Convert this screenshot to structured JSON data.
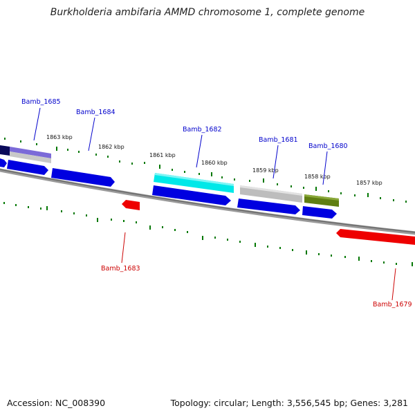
{
  "title": "Burkholderia ambifaria AMMD chromosome 1, complete genome",
  "footer": {
    "accession": "Accession: NC_008390",
    "topology": "Topology: circular; Length: 3,556,545 bp; Genes: 3,281"
  },
  "kbp_labels": [
    "1863 kbp",
    "1862 kbp",
    "1861 kbp",
    "1860 kbp",
    "1859 kbp",
    "1858 kbp",
    "1857 kbp"
  ],
  "genes": {
    "Bamb_1685": "Bamb_1685",
    "Bamb_1684": "Bamb_1684",
    "Bamb_1682": "Bamb_1682",
    "Bamb_1681": "Bamb_1681",
    "Bamb_1680": "Bamb_1680",
    "Bamb_1683": "Bamb_1683",
    "Bamb_1679": "Bamb_1679"
  },
  "colors": {
    "forward_label": "#0000cc",
    "reverse_label": "#cc0000",
    "cds_blue": "#0000e0",
    "cds_red": "#ee0000",
    "cyan": "#00e5e5",
    "gray": "#b8b8b8",
    "olive": "#5a7a10",
    "navy": "#0a0a5a",
    "purple": "#6a5acd",
    "tick": "#007700",
    "backbone": "#888888"
  }
}
